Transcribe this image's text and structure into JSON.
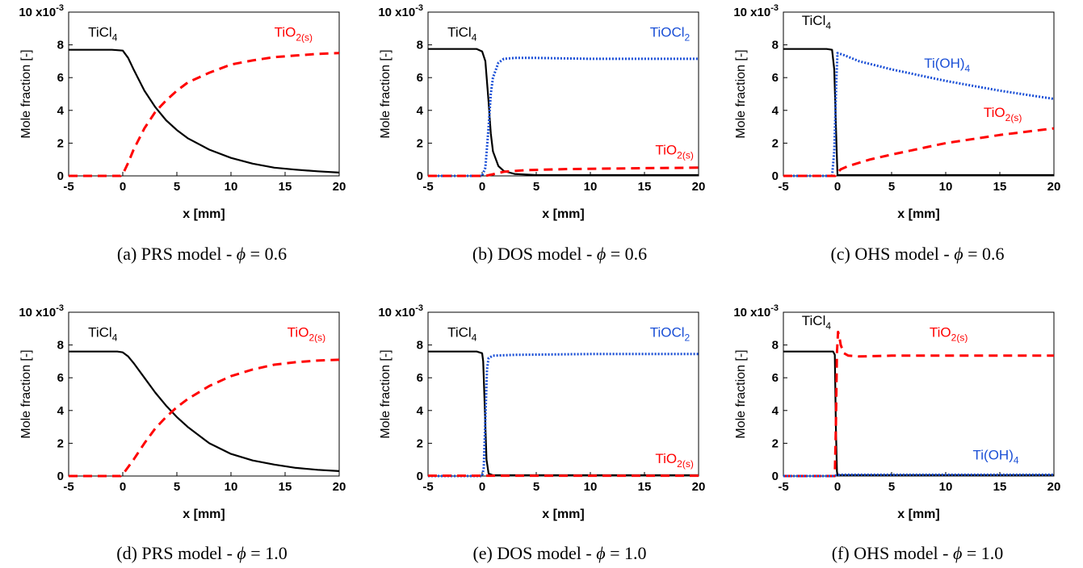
{
  "figure": {
    "colors": {
      "TiCl4": "#000000",
      "TiO2": "#ff0000",
      "TiOCl2": "#1a4fd6",
      "TiOH4": "#1a4fd6"
    },
    "panels": [
      {
        "caption": {
          "prefix": "(a) PRS model - ",
          "symbol": "ϕ",
          "suffix": " = 0.6"
        },
        "chart_data": {
          "type": "line",
          "xlabel": "x [mm]",
          "ylabel": "Mole fraction [-]",
          "yscale_label": "10 x10-3",
          "xlim": [
            -5,
            20
          ],
          "ylim": [
            0,
            10
          ],
          "xticks": [
            -5,
            0,
            5,
            10,
            15,
            20
          ],
          "yticks": [
            0,
            2,
            4,
            6,
            8
          ],
          "series": [
            {
              "name": "TiCl4",
              "style": "solid",
              "color": "#000000",
              "x": [
                -5,
                -1,
                0,
                0.5,
                1,
                2,
                3,
                4,
                5,
                6,
                8,
                10,
                12,
                14,
                16,
                18,
                20
              ],
              "y": [
                7.7,
                7.7,
                7.65,
                7.2,
                6.5,
                5.2,
                4.2,
                3.4,
                2.8,
                2.3,
                1.6,
                1.1,
                0.75,
                0.5,
                0.38,
                0.28,
                0.2
              ]
            },
            {
              "name": "TiO2(s)",
              "style": "dashed",
              "color": "#ff0000",
              "x": [
                -5,
                -0.2,
                0,
                0.5,
                1,
                2,
                3,
                4,
                5,
                6,
                8,
                10,
                12,
                14,
                16,
                18,
                20
              ],
              "y": [
                0,
                0,
                0.1,
                0.8,
                1.6,
                2.9,
                3.9,
                4.6,
                5.2,
                5.7,
                6.3,
                6.8,
                7.05,
                7.25,
                7.35,
                7.45,
                7.5
              ]
            }
          ],
          "labels": [
            {
              "base": "TiCl",
              "sub": "4",
              "color": "#000000",
              "x": -3.2,
              "y": 8.5
            },
            {
              "base": "TiO",
              "sub": "2(s)",
              "color": "#ff0000",
              "x": 14,
              "y": 8.5
            }
          ]
        }
      },
      {
        "caption": {
          "prefix": "(b) DOS model - ",
          "symbol": "ϕ",
          "suffix": " = 0.6"
        },
        "chart_data": {
          "type": "line",
          "xlabel": "x [mm]",
          "ylabel": "Mole fraction [-]",
          "yscale_label": "10 x10-3",
          "xlim": [
            -5,
            20
          ],
          "ylim": [
            0,
            10
          ],
          "xticks": [
            -5,
            0,
            5,
            10,
            15,
            20
          ],
          "yticks": [
            0,
            2,
            4,
            6,
            8
          ],
          "series": [
            {
              "name": "TiCl4",
              "style": "solid",
              "color": "#000000",
              "x": [
                -5,
                -0.5,
                0,
                0.3,
                0.6,
                0.8,
                1,
                1.5,
                2,
                3,
                5,
                20
              ],
              "y": [
                7.75,
                7.75,
                7.6,
                7.0,
                4.5,
                2.6,
                1.5,
                0.6,
                0.3,
                0.12,
                0.05,
                0.05
              ]
            },
            {
              "name": "TiOCl2",
              "style": "dotted",
              "color": "#1a4fd6",
              "x": [
                -5,
                0,
                0.3,
                0.6,
                0.8,
                1,
                1.5,
                2,
                3,
                5,
                10,
                15,
                20
              ],
              "y": [
                0,
                0,
                0.5,
                3.0,
                5.0,
                6.0,
                6.9,
                7.15,
                7.2,
                7.2,
                7.15,
                7.15,
                7.15
              ]
            },
            {
              "name": "TiO2(s)",
              "style": "dashed",
              "color": "#ff0000",
              "x": [
                -5,
                0.3,
                1,
                2,
                4,
                8,
                12,
                16,
                20
              ],
              "y": [
                0,
                0,
                0.1,
                0.25,
                0.35,
                0.42,
                0.45,
                0.48,
                0.5
              ]
            }
          ],
          "labels": [
            {
              "base": "TiCl",
              "sub": "4",
              "color": "#000000",
              "x": -3.2,
              "y": 8.5
            },
            {
              "base": "TiOCl",
              "sub": "2",
              "color": "#1a4fd6",
              "x": 15.5,
              "y": 8.5
            },
            {
              "base": "TiO",
              "sub": "2(s)",
              "color": "#ff0000",
              "x": 16,
              "y": 1.3
            }
          ]
        }
      },
      {
        "caption": {
          "prefix": "(c) OHS model - ",
          "symbol": "ϕ",
          "suffix": " = 0.6"
        },
        "chart_data": {
          "type": "line",
          "xlabel": "x [mm]",
          "ylabel": "Mole fraction [-]",
          "yscale_label": "10 x10-3",
          "xlim": [
            -5,
            20
          ],
          "ylim": [
            0,
            10
          ],
          "xticks": [
            -5,
            0,
            5,
            10,
            15,
            20
          ],
          "yticks": [
            0,
            2,
            4,
            6,
            8
          ],
          "series": [
            {
              "name": "TiCl4",
              "style": "solid",
              "color": "#000000",
              "x": [
                -5,
                -1,
                -0.5,
                -0.3,
                -0.1,
                0,
                20
              ],
              "y": [
                7.75,
                7.75,
                7.7,
                6.5,
                2.0,
                0.05,
                0.05
              ]
            },
            {
              "name": "Ti(OH)4",
              "style": "dotted",
              "color": "#1a4fd6",
              "x": [
                -5,
                -0.5,
                -0.3,
                -0.1,
                0,
                0.5,
                2,
                5,
                10,
                15,
                20
              ],
              "y": [
                0,
                0,
                1.5,
                6.0,
                7.5,
                7.4,
                7.0,
                6.5,
                5.8,
                5.2,
                4.7
              ]
            },
            {
              "name": "TiO2(s)",
              "style": "dashed",
              "color": "#ff0000",
              "x": [
                -5,
                -0.2,
                0,
                0.3,
                1,
                3,
                5,
                10,
                15,
                20
              ],
              "y": [
                0,
                0,
                0.2,
                0.4,
                0.6,
                1.0,
                1.3,
                2.0,
                2.5,
                2.9
              ]
            }
          ],
          "labels": [
            {
              "base": "TiCl",
              "sub": "4",
              "color": "#000000",
              "x": -3.3,
              "y": 9.2
            },
            {
              "base": "Ti(OH)",
              "sub": "4",
              "color": "#1a4fd6",
              "x": 8,
              "y": 6.6
            },
            {
              "base": "TiO",
              "sub": "2(s)",
              "color": "#ff0000",
              "x": 13.5,
              "y": 3.6
            }
          ]
        }
      },
      {
        "caption": {
          "prefix": "(d) PRS model - ",
          "symbol": "ϕ",
          "suffix": " = 1.0"
        },
        "chart_data": {
          "type": "line",
          "xlabel": "x [mm]",
          "ylabel": "Mole fraction [-]",
          "yscale_label": "10 x10-3",
          "xlim": [
            -5,
            20
          ],
          "ylim": [
            0,
            10
          ],
          "xticks": [
            -5,
            0,
            5,
            10,
            15,
            20
          ],
          "yticks": [
            0,
            2,
            4,
            6,
            8
          ],
          "series": [
            {
              "name": "TiCl4",
              "style": "solid",
              "color": "#000000",
              "x": [
                -5,
                -0.5,
                0,
                0.5,
                1,
                2,
                3,
                4,
                5,
                6,
                8,
                10,
                12,
                14,
                16,
                18,
                20
              ],
              "y": [
                7.6,
                7.6,
                7.55,
                7.3,
                6.9,
                6.0,
                5.1,
                4.3,
                3.6,
                3.0,
                2.0,
                1.35,
                0.95,
                0.7,
                0.5,
                0.38,
                0.3
              ]
            },
            {
              "name": "TiO2(s)",
              "style": "dashed",
              "color": "#ff0000",
              "x": [
                -5,
                -0.2,
                0,
                1,
                2,
                3,
                4,
                5,
                6,
                8,
                10,
                12,
                14,
                16,
                18,
                20
              ],
              "y": [
                0,
                0,
                0.1,
                1.0,
                2.0,
                2.9,
                3.6,
                4.2,
                4.7,
                5.5,
                6.1,
                6.5,
                6.8,
                6.95,
                7.05,
                7.1
              ]
            }
          ],
          "labels": [
            {
              "base": "TiCl",
              "sub": "4",
              "color": "#000000",
              "x": -3.2,
              "y": 8.5
            },
            {
              "base": "TiO",
              "sub": "2(s)",
              "color": "#ff0000",
              "x": 15.2,
              "y": 8.5
            }
          ]
        }
      },
      {
        "caption": {
          "prefix": "(e) DOS model - ",
          "symbol": "ϕ",
          "suffix": " = 1.0"
        },
        "chart_data": {
          "type": "line",
          "xlabel": "x [mm]",
          "ylabel": "Mole fraction [-]",
          "yscale_label": "10 x10-3",
          "xlim": [
            -5,
            20
          ],
          "ylim": [
            0,
            10
          ],
          "xticks": [
            -5,
            0,
            5,
            10,
            15,
            20
          ],
          "yticks": [
            0,
            2,
            4,
            6,
            8
          ],
          "series": [
            {
              "name": "TiCl4",
              "style": "solid",
              "color": "#000000",
              "x": [
                -5,
                -0.5,
                0,
                0.1,
                0.25,
                0.4,
                0.6,
                1,
                20
              ],
              "y": [
                7.6,
                7.6,
                7.5,
                7.0,
                4.0,
                1.0,
                0.15,
                0.05,
                0.05
              ]
            },
            {
              "name": "TiOCl2",
              "style": "dotted",
              "color": "#1a4fd6",
              "x": [
                -5,
                0,
                0.15,
                0.3,
                0.45,
                0.6,
                1,
                3,
                10,
                20
              ],
              "y": [
                0,
                0,
                0.5,
                3.5,
                6.5,
                7.2,
                7.35,
                7.4,
                7.45,
                7.45
              ]
            },
            {
              "name": "TiO2(s)",
              "style": "dashed",
              "color": "#ff0000",
              "x": [
                -5,
                20
              ],
              "y": [
                0.02,
                0.02
              ]
            }
          ],
          "labels": [
            {
              "base": "TiCl",
              "sub": "4",
              "color": "#000000",
              "x": -3.2,
              "y": 8.5
            },
            {
              "base": "TiOCl",
              "sub": "2",
              "color": "#1a4fd6",
              "x": 15.5,
              "y": 8.5
            },
            {
              "base": "TiO",
              "sub": "2(s)",
              "color": "#ff0000",
              "x": 16,
              "y": 0.8
            }
          ]
        }
      },
      {
        "caption": {
          "prefix": "(f) OHS model - ",
          "symbol": "ϕ",
          "suffix": " = 1.0"
        },
        "chart_data": {
          "type": "line",
          "xlabel": "x [mm]",
          "ylabel": "Mole fraction [-]",
          "yscale_label": "10 x10-3",
          "xlim": [
            -5,
            20
          ],
          "ylim": [
            0,
            10
          ],
          "xticks": [
            -5,
            0,
            5,
            10,
            15,
            20
          ],
          "yticks": [
            0,
            2,
            4,
            6,
            8
          ],
          "series": [
            {
              "name": "TiCl4",
              "style": "solid",
              "color": "#000000",
              "x": [
                -5,
                -0.4,
                -0.25,
                -0.15,
                -0.05,
                0,
                20
              ],
              "y": [
                7.6,
                7.6,
                7.4,
                3.0,
                0.3,
                0.05,
                0.05
              ]
            },
            {
              "name": "TiO2(s)",
              "style": "dashed",
              "color": "#ff0000",
              "x": [
                -5,
                -0.25,
                -0.15,
                -0.05,
                0.05,
                0.15,
                0.3,
                0.6,
                1,
                2,
                5,
                10,
                15,
                20
              ],
              "y": [
                0,
                0,
                3.0,
                7.5,
                8.8,
                8.6,
                8.0,
                7.5,
                7.35,
                7.3,
                7.35,
                7.35,
                7.35,
                7.35
              ]
            },
            {
              "name": "Ti(OH)4",
              "style": "dotted",
              "color": "#1a4fd6",
              "x": [
                -5,
                -0.3,
                -0.1,
                0.2,
                1,
                5,
                10,
                15,
                20
              ],
              "y": [
                0,
                0,
                0.05,
                0.08,
                0.08,
                0.08,
                0.08,
                0.08,
                0.08
              ]
            }
          ],
          "labels": [
            {
              "base": "TiCl",
              "sub": "4",
              "color": "#000000",
              "x": -3.3,
              "y": 9.2
            },
            {
              "base": "TiO",
              "sub": "2(s)",
              "color": "#ff0000",
              "x": 8.5,
              "y": 8.5
            },
            {
              "base": "Ti(OH)",
              "sub": "4",
              "color": "#1a4fd6",
              "x": 12.5,
              "y": 1.0
            }
          ]
        }
      }
    ]
  }
}
